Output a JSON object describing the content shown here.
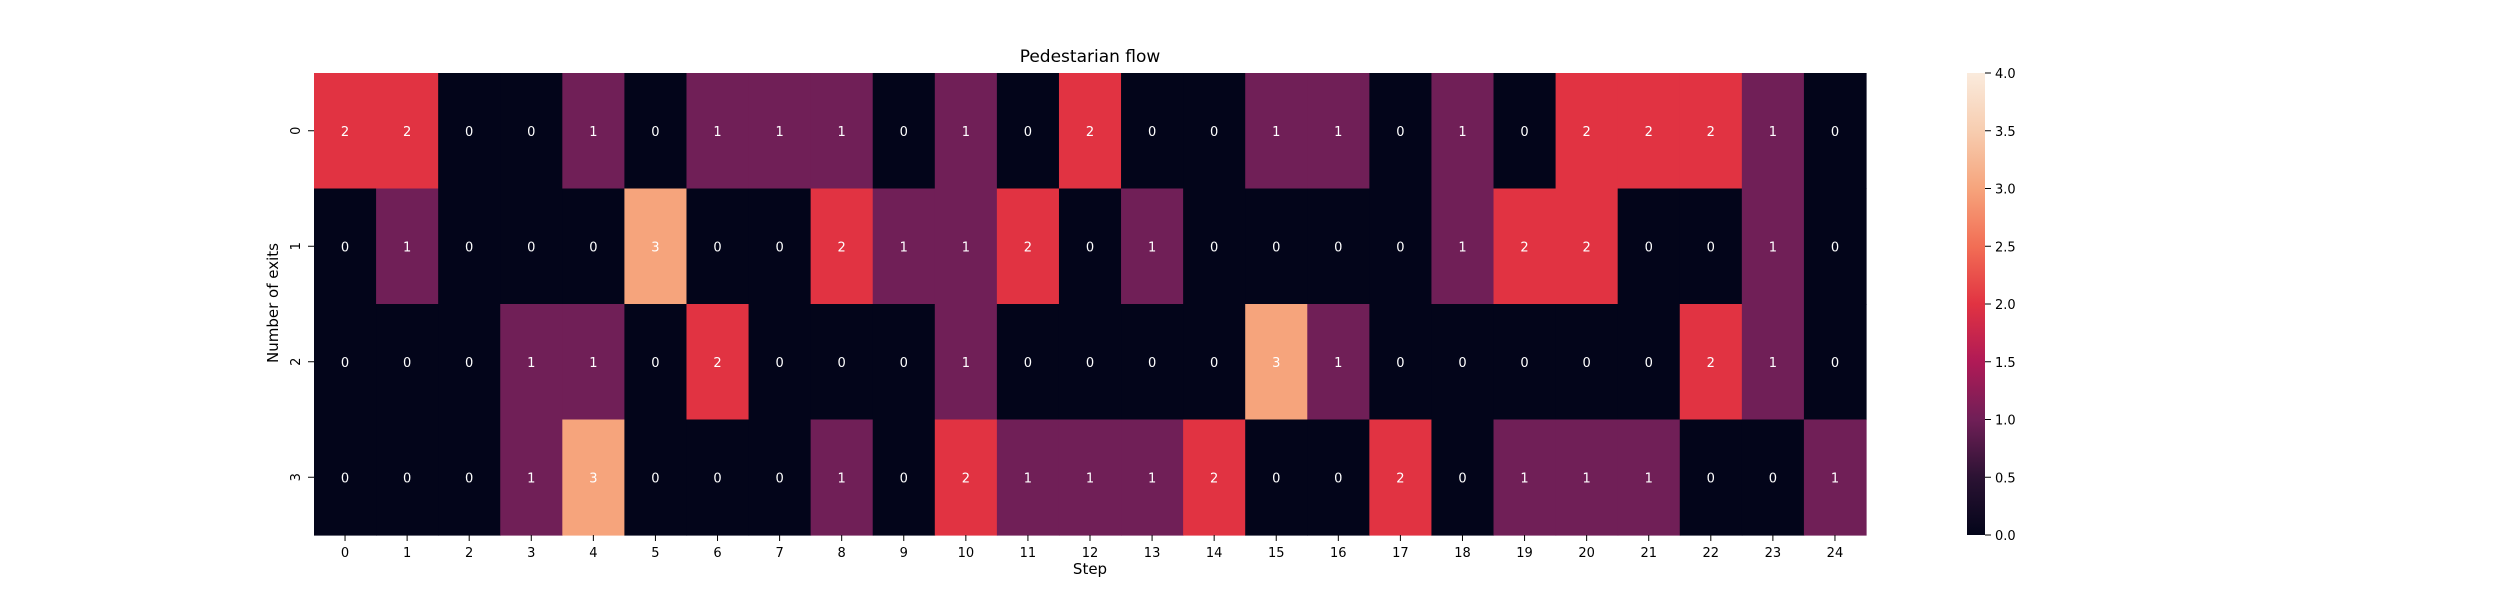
{
  "chart_data": {
    "type": "heatmap",
    "title": "Pedestarian flow",
    "xlabel": "Step",
    "ylabel": "Number of exits",
    "x_categories": [
      "0",
      "1",
      "2",
      "3",
      "4",
      "5",
      "6",
      "7",
      "8",
      "9",
      "10",
      "11",
      "12",
      "13",
      "14",
      "15",
      "16",
      "17",
      "18",
      "19",
      "20",
      "21",
      "22",
      "23",
      "24"
    ],
    "y_categories": [
      "0",
      "1",
      "2",
      "3"
    ],
    "values": [
      [
        2,
        2,
        0,
        0,
        1,
        0,
        1,
        1,
        1,
        0,
        1,
        0,
        2,
        0,
        0,
        1,
        1,
        0,
        1,
        0,
        2,
        2,
        2,
        1,
        0
      ],
      [
        0,
        1,
        0,
        0,
        0,
        3,
        0,
        0,
        2,
        1,
        1,
        2,
        0,
        1,
        0,
        0,
        0,
        0,
        1,
        2,
        2,
        0,
        0,
        1,
        0
      ],
      [
        0,
        0,
        0,
        1,
        1,
        0,
        2,
        0,
        0,
        0,
        1,
        0,
        0,
        0,
        0,
        3,
        1,
        0,
        0,
        0,
        0,
        0,
        2,
        1,
        0
      ],
      [
        0,
        0,
        0,
        1,
        3,
        0,
        0,
        0,
        1,
        0,
        2,
        1,
        1,
        1,
        2,
        0,
        0,
        2,
        0,
        1,
        1,
        1,
        0,
        0,
        1
      ]
    ],
    "vmin": 0,
    "vmax": 4,
    "colorbar_ticks": [
      "0.0",
      "0.5",
      "1.0",
      "1.5",
      "2.0",
      "2.5",
      "3.0",
      "3.5",
      "4.0"
    ],
    "colormap": "rocket",
    "colors": {
      "0": "#03051a",
      "1": "#701f57",
      "2": "#e13342",
      "3": "#f6a47c",
      "4": "#faebdd"
    },
    "annotation_color_dark": "#ffffff",
    "annotation_color_light": "#262626",
    "grid": false,
    "colorbar_position": "right"
  }
}
